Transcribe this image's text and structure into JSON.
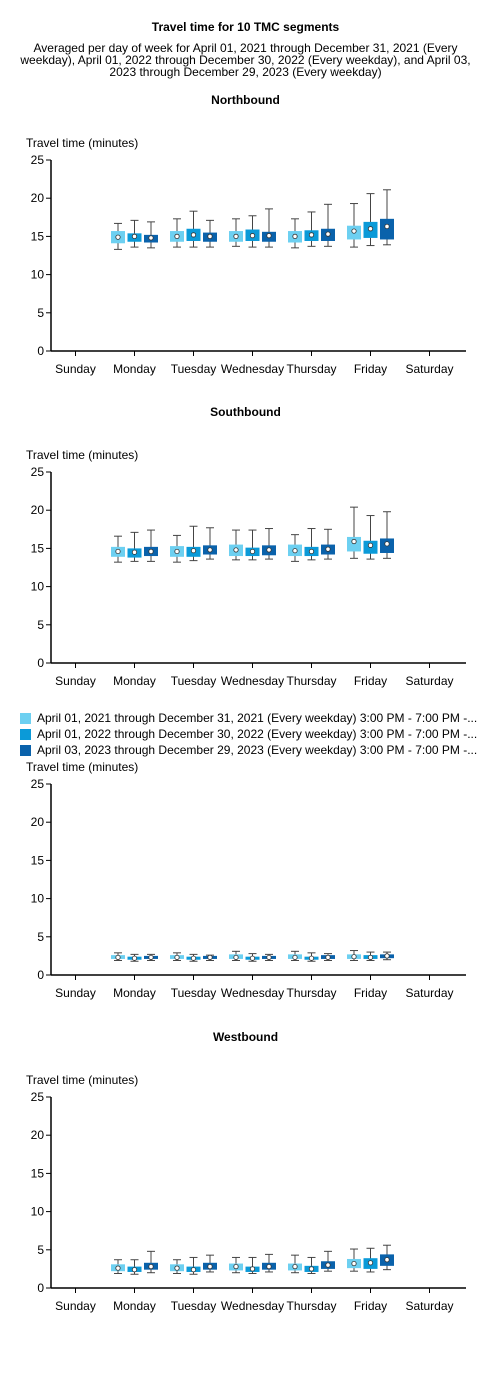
{
  "title": "Travel time for 10 TMC segments",
  "subtitle": "Averaged per day of week for April 01, 2021 through December 31, 2021 (Every weekday), April 01, 2022 through December 30, 2022 (Every weekday), and April 03, 2023 through December 29, 2023 (Every weekday)",
  "legend": [
    {
      "label": "April 01, 2021 through December 31, 2021 (Every weekday) 3:00 PM - 7:00 PM -...",
      "color": "#6dd0f1"
    },
    {
      "label": "April 01, 2022 through December 30, 2022 (Every weekday) 3:00 PM - 7:00 PM -...",
      "color": "#0b9ad8"
    },
    {
      "label": "April 03, 2023 through December 29, 2023 (Every weekday) 3:00 PM - 7:00 PM -...",
      "color": "#0a62ab"
    }
  ],
  "chart_data": [
    {
      "type": "box",
      "title": "Northbound",
      "ylabel": "Travel time (minutes)",
      "ylim": [
        0,
        25
      ],
      "yticks": [
        0,
        5,
        10,
        15,
        20,
        25
      ],
      "categories": [
        "Sunday",
        "Monday",
        "Tuesday",
        "Wednesday",
        "Thursday",
        "Friday",
        "Saturday"
      ],
      "series": [
        {
          "values": [
            null,
            {
              "min": 13.3,
              "q1": 14.1,
              "mean": 14.9,
              "q3": 15.7,
              "max": 16.7
            },
            {
              "min": 13.6,
              "q1": 14.3,
              "mean": 15.0,
              "q3": 15.7,
              "max": 17.3
            },
            {
              "min": 13.7,
              "q1": 14.3,
              "mean": 15.0,
              "q3": 15.7,
              "max": 17.3
            },
            {
              "min": 13.5,
              "q1": 14.2,
              "mean": 15.0,
              "q3": 15.7,
              "max": 17.3
            },
            {
              "min": 13.6,
              "q1": 14.6,
              "mean": 15.7,
              "q3": 16.4,
              "max": 19.3
            },
            null
          ]
        },
        {
          "values": [
            null,
            {
              "min": 13.6,
              "q1": 14.3,
              "mean": 15.0,
              "q3": 15.4,
              "max": 17.1
            },
            {
              "min": 13.6,
              "q1": 14.4,
              "mean": 15.2,
              "q3": 16.0,
              "max": 18.3
            },
            {
              "min": 13.6,
              "q1": 14.4,
              "mean": 15.1,
              "q3": 15.9,
              "max": 17.7
            },
            {
              "min": 13.7,
              "q1": 14.4,
              "mean": 15.2,
              "q3": 15.8,
              "max": 18.2
            },
            {
              "min": 13.8,
              "q1": 14.8,
              "mean": 16.0,
              "q3": 16.9,
              "max": 20.6
            },
            null
          ]
        },
        {
          "values": [
            null,
            {
              "min": 13.5,
              "q1": 14.2,
              "mean": 14.8,
              "q3": 15.2,
              "max": 16.9
            },
            {
              "min": 13.6,
              "q1": 14.3,
              "mean": 15.0,
              "q3": 15.5,
              "max": 17.1
            },
            {
              "min": 13.6,
              "q1": 14.3,
              "mean": 15.1,
              "q3": 15.6,
              "max": 18.6
            },
            {
              "min": 13.7,
              "q1": 14.4,
              "mean": 15.3,
              "q3": 16.0,
              "max": 19.2
            },
            {
              "min": 13.9,
              "q1": 14.6,
              "mean": 16.3,
              "q3": 17.3,
              "max": 21.1
            },
            null
          ]
        }
      ]
    },
    {
      "type": "box",
      "title": "Southbound",
      "ylabel": "Travel time (minutes)",
      "ylim": [
        0,
        25
      ],
      "yticks": [
        0,
        5,
        10,
        15,
        20,
        25
      ],
      "categories": [
        "Sunday",
        "Monday",
        "Tuesday",
        "Wednesday",
        "Thursday",
        "Friday",
        "Saturday"
      ],
      "series": [
        {
          "values": [
            null,
            {
              "min": 13.2,
              "q1": 13.9,
              "mean": 14.6,
              "q3": 15.2,
              "max": 16.6
            },
            {
              "min": 13.2,
              "q1": 13.9,
              "mean": 14.6,
              "q3": 15.3,
              "max": 16.7
            },
            {
              "min": 13.5,
              "q1": 14.0,
              "mean": 14.8,
              "q3": 15.5,
              "max": 17.4
            },
            {
              "min": 13.3,
              "q1": 14.0,
              "mean": 14.7,
              "q3": 15.5,
              "max": 16.8
            },
            {
              "min": 13.7,
              "q1": 14.6,
              "mean": 15.9,
              "q3": 16.5,
              "max": 20.4
            },
            null
          ]
        },
        {
          "values": [
            null,
            {
              "min": 13.3,
              "q1": 13.8,
              "mean": 14.5,
              "q3": 15.0,
              "max": 17.1
            },
            {
              "min": 13.4,
              "q1": 13.9,
              "mean": 14.7,
              "q3": 15.2,
              "max": 17.9
            },
            {
              "min": 13.5,
              "q1": 14.0,
              "mean": 14.6,
              "q3": 15.1,
              "max": 17.4
            },
            {
              "min": 13.5,
              "q1": 14.0,
              "mean": 14.6,
              "q3": 15.2,
              "max": 17.6
            },
            {
              "min": 13.6,
              "q1": 14.3,
              "mean": 15.4,
              "q3": 16.0,
              "max": 19.3
            },
            null
          ]
        },
        {
          "values": [
            null,
            {
              "min": 13.3,
              "q1": 14.0,
              "mean": 14.6,
              "q3": 15.2,
              "max": 17.4
            },
            {
              "min": 13.6,
              "q1": 14.2,
              "mean": 14.8,
              "q3": 15.4,
              "max": 17.7
            },
            {
              "min": 13.6,
              "q1": 14.1,
              "mean": 14.8,
              "q3": 15.4,
              "max": 17.6
            },
            {
              "min": 13.6,
              "q1": 14.2,
              "mean": 14.9,
              "q3": 15.5,
              "max": 17.5
            },
            {
              "min": 13.7,
              "q1": 14.4,
              "mean": 15.6,
              "q3": 16.3,
              "max": 19.8
            },
            null
          ]
        }
      ]
    },
    {
      "type": "box",
      "title": "",
      "ylabel": "Travel time (minutes)",
      "ylim": [
        0,
        25
      ],
      "yticks": [
        0,
        5,
        10,
        15,
        20,
        25
      ],
      "categories": [
        "Sunday",
        "Monday",
        "Tuesday",
        "Wednesday",
        "Thursday",
        "Friday",
        "Saturday"
      ],
      "series": [
        {
          "values": [
            null,
            {
              "min": 1.9,
              "q1": 2.1,
              "mean": 2.3,
              "q3": 2.6,
              "max": 2.9
            },
            {
              "min": 1.9,
              "q1": 2.1,
              "mean": 2.3,
              "q3": 2.6,
              "max": 2.9
            },
            {
              "min": 1.9,
              "q1": 2.1,
              "mean": 2.3,
              "q3": 2.7,
              "max": 3.1
            },
            {
              "min": 1.9,
              "q1": 2.1,
              "mean": 2.3,
              "q3": 2.7,
              "max": 3.1
            },
            {
              "min": 1.9,
              "q1": 2.1,
              "mean": 2.4,
              "q3": 2.7,
              "max": 3.2
            },
            null
          ]
        },
        {
          "values": [
            null,
            {
              "min": 1.8,
              "q1": 2.0,
              "mean": 2.2,
              "q3": 2.4,
              "max": 2.7
            },
            {
              "min": 1.8,
              "q1": 2.0,
              "mean": 2.2,
              "q3": 2.4,
              "max": 2.7
            },
            {
              "min": 1.8,
              "q1": 2.0,
              "mean": 2.2,
              "q3": 2.4,
              "max": 2.8
            },
            {
              "min": 1.8,
              "q1": 2.0,
              "mean": 2.2,
              "q3": 2.4,
              "max": 2.9
            },
            {
              "min": 1.9,
              "q1": 2.1,
              "mean": 2.3,
              "q3": 2.6,
              "max": 3.0
            },
            null
          ]
        },
        {
          "values": [
            null,
            {
              "min": 1.9,
              "q1": 2.1,
              "mean": 2.3,
              "q3": 2.5,
              "max": 2.7
            },
            {
              "min": 1.9,
              "q1": 2.1,
              "mean": 2.3,
              "q3": 2.5,
              "max": 2.6
            },
            {
              "min": 1.9,
              "q1": 2.1,
              "mean": 2.3,
              "q3": 2.5,
              "max": 2.7
            },
            {
              "min": 1.9,
              "q1": 2.1,
              "mean": 2.3,
              "q3": 2.6,
              "max": 2.8
            },
            {
              "min": 2.0,
              "q1": 2.2,
              "mean": 2.5,
              "q3": 2.7,
              "max": 3.0
            },
            null
          ]
        }
      ]
    },
    {
      "type": "box",
      "title": "Westbound",
      "ylabel": "Travel time (minutes)",
      "ylim": [
        0,
        25
      ],
      "yticks": [
        0,
        5,
        10,
        15,
        20,
        25
      ],
      "categories": [
        "Sunday",
        "Monday",
        "Tuesday",
        "Wednesday",
        "Thursday",
        "Friday",
        "Saturday"
      ],
      "series": [
        {
          "values": [
            null,
            {
              "min": 1.9,
              "q1": 2.2,
              "mean": 2.6,
              "q3": 3.1,
              "max": 3.7
            },
            {
              "min": 1.9,
              "q1": 2.2,
              "mean": 2.6,
              "q3": 3.1,
              "max": 3.7
            },
            {
              "min": 2.0,
              "q1": 2.3,
              "mean": 2.8,
              "q3": 3.2,
              "max": 4.0
            },
            {
              "min": 2.0,
              "q1": 2.3,
              "mean": 2.8,
              "q3": 3.2,
              "max": 4.3
            },
            {
              "min": 2.2,
              "q1": 2.6,
              "mean": 3.2,
              "q3": 3.8,
              "max": 5.1
            },
            null
          ]
        },
        {
          "values": [
            null,
            {
              "min": 1.8,
              "q1": 2.1,
              "mean": 2.4,
              "q3": 2.8,
              "max": 3.7
            },
            {
              "min": 1.8,
              "q1": 2.1,
              "mean": 2.4,
              "q3": 2.8,
              "max": 4.0
            },
            {
              "min": 1.9,
              "q1": 2.1,
              "mean": 2.5,
              "q3": 2.8,
              "max": 4.0
            },
            {
              "min": 1.9,
              "q1": 2.1,
              "mean": 2.5,
              "q3": 2.9,
              "max": 4.0
            },
            {
              "min": 2.1,
              "q1": 2.5,
              "mean": 3.3,
              "q3": 3.9,
              "max": 5.2
            },
            null
          ]
        },
        {
          "values": [
            null,
            {
              "min": 2.0,
              "q1": 2.4,
              "mean": 2.8,
              "q3": 3.3,
              "max": 4.8
            },
            {
              "min": 2.1,
              "q1": 2.4,
              "mean": 2.8,
              "q3": 3.3,
              "max": 4.3
            },
            {
              "min": 2.1,
              "q1": 2.4,
              "mean": 2.8,
              "q3": 3.3,
              "max": 4.4
            },
            {
              "min": 2.2,
              "q1": 2.5,
              "mean": 3.0,
              "q3": 3.5,
              "max": 4.8
            },
            {
              "min": 2.4,
              "q1": 2.9,
              "mean": 3.7,
              "q3": 4.4,
              "max": 5.6
            },
            null
          ]
        }
      ]
    }
  ]
}
